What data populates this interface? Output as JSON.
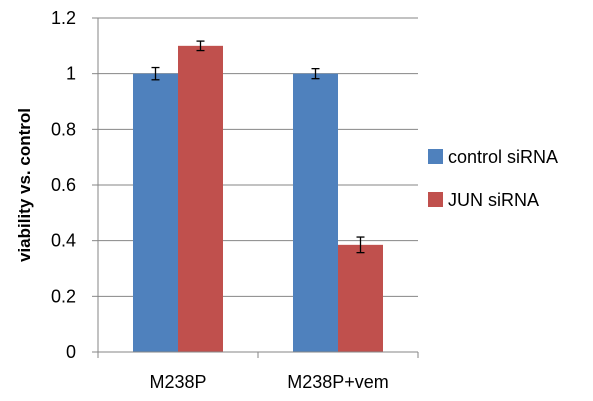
{
  "chart_data": {
    "type": "bar",
    "title": "",
    "xlabel": "",
    "ylabel": "viability vs. control",
    "ylim": [
      0,
      1.2
    ],
    "yticks": [
      "0",
      "0.2",
      "0.4",
      "0.6",
      "0.8",
      "1",
      "1.2"
    ],
    "grid": true,
    "legend_position": "right",
    "categories": [
      "M238P",
      "M238P+vem"
    ],
    "series": [
      {
        "name": "control siRNA",
        "color": "#4F81BD",
        "values": [
          1.0,
          1.0
        ],
        "errors": [
          0.022,
          0.018
        ]
      },
      {
        "name": "JUN siRNA",
        "color": "#C0504D",
        "values": [
          1.1,
          0.385
        ],
        "errors": [
          0.017,
          0.028
        ]
      }
    ]
  }
}
